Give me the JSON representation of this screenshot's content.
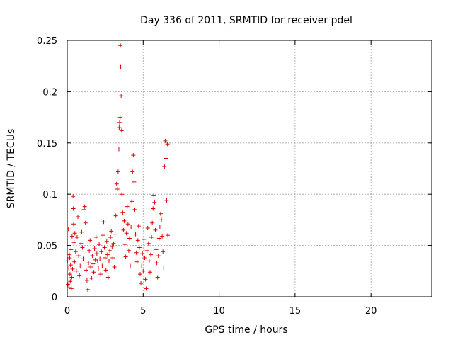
{
  "chart_data": {
    "type": "scatter",
    "title": "Day 336 of 2011, SRMTID for receiver pdel",
    "xlabel": "GPS time / hours",
    "ylabel": "SRMTID / TECUs",
    "xlim": [
      0,
      24
    ],
    "ylim": [
      0,
      0.25
    ],
    "xticks": [
      0,
      5,
      10,
      15,
      20
    ],
    "xtick_labels": [
      "0",
      "5",
      "10",
      "15",
      "20"
    ],
    "yticks": [
      0,
      0.05,
      0.1,
      0.15,
      0.2,
      0.25
    ],
    "ytick_labels": [
      "0",
      "0.05",
      "0.1",
      "0.15",
      "0.2",
      "0.25"
    ],
    "grid": true,
    "marker": "+",
    "colors": {
      "series": "#dd0000",
      "grid": "#a0a0a0",
      "axis": "#000000"
    },
    "series": [
      {
        "name": "pdel",
        "points": [
          [
            0.02,
            0.035
          ],
          [
            0.05,
            0.012
          ],
          [
            0.08,
            0.066
          ],
          [
            0.1,
            0.028
          ],
          [
            0.12,
            0.009
          ],
          [
            0.14,
            0.041
          ],
          [
            0.16,
            0.038
          ],
          [
            0.18,
            0.022
          ],
          [
            0.2,
            0.015
          ],
          [
            0.22,
            0.031
          ],
          [
            0.25,
            0.046
          ],
          [
            0.27,
            0.008
          ],
          [
            0.3,
            0.019
          ],
          [
            0.32,
            0.059
          ],
          [
            0.35,
            0.027
          ],
          [
            0.38,
            0.098
          ],
          [
            0.4,
            0.086
          ],
          [
            0.42,
            0.071
          ],
          [
            0.45,
            0.053
          ],
          [
            0.48,
            0.034
          ],
          [
            0.5,
            0.062
          ],
          [
            0.55,
            0.044
          ],
          [
            0.6,
            0.025
          ],
          [
            0.65,
            0.058
          ],
          [
            0.7,
            0.078
          ],
          [
            0.75,
            0.04
          ],
          [
            0.8,
            0.021
          ],
          [
            0.85,
            0.03
          ],
          [
            0.9,
            0.052
          ],
          [
            0.95,
            0.063
          ],
          [
            1.0,
            0.048
          ],
          [
            1.05,
            0.037
          ],
          [
            1.1,
            0.085
          ],
          [
            1.15,
            0.088
          ],
          [
            1.2,
            0.072
          ],
          [
            1.25,
            0.026
          ],
          [
            1.3,
            0.016
          ],
          [
            1.35,
            0.007
          ],
          [
            1.4,
            0.033
          ],
          [
            1.45,
            0.045
          ],
          [
            1.5,
            0.055
          ],
          [
            1.55,
            0.029
          ],
          [
            1.6,
            0.018
          ],
          [
            1.65,
            0.04
          ],
          [
            1.7,
            0.032
          ],
          [
            1.75,
            0.024
          ],
          [
            1.8,
            0.047
          ],
          [
            1.85,
            0.036
          ],
          [
            1.9,
            0.058
          ],
          [
            1.95,
            0.042
          ],
          [
            2.0,
            0.035
          ],
          [
            2.05,
            0.028
          ],
          [
            2.1,
            0.051
          ],
          [
            2.15,
            0.037
          ],
          [
            2.2,
            0.022
          ],
          [
            2.25,
            0.044
          ],
          [
            2.3,
            0.03
          ],
          [
            2.35,
            0.06
          ],
          [
            2.4,
            0.073
          ],
          [
            2.45,
            0.048
          ],
          [
            2.5,
            0.038
          ],
          [
            2.55,
            0.026
          ],
          [
            2.6,
            0.054
          ],
          [
            2.65,
            0.041
          ],
          [
            2.7,
            0.019
          ],
          [
            2.75,
            0.035
          ],
          [
            2.8,
            0.045
          ],
          [
            2.85,
            0.058
          ],
          [
            2.9,
            0.064
          ],
          [
            2.95,
            0.049
          ],
          [
            3.0,
            0.038
          ],
          [
            3.05,
            0.052
          ],
          [
            3.1,
            0.029
          ],
          [
            3.15,
            0.061
          ],
          [
            3.2,
            0.079
          ],
          [
            3.25,
            0.11
          ],
          [
            3.3,
            0.105
          ],
          [
            3.35,
            0.122
          ],
          [
            3.4,
            0.144
          ],
          [
            3.42,
            0.165
          ],
          [
            3.45,
            0.17
          ],
          [
            3.48,
            0.175
          ],
          [
            3.5,
            0.245
          ],
          [
            3.52,
            0.224
          ],
          [
            3.55,
            0.196
          ],
          [
            3.58,
            0.162
          ],
          [
            3.6,
            0.1
          ],
          [
            3.65,
            0.082
          ],
          [
            3.7,
            0.065
          ],
          [
            3.75,
            0.074
          ],
          [
            3.8,
            0.051
          ],
          [
            3.85,
            0.039
          ],
          [
            3.9,
            0.062
          ],
          [
            3.95,
            0.088
          ],
          [
            4.0,
            0.071
          ],
          [
            4.05,
            0.045
          ],
          [
            4.1,
            0.057
          ],
          [
            4.15,
            0.03
          ],
          [
            4.2,
            0.068
          ],
          [
            4.25,
            0.093
          ],
          [
            4.3,
            0.122
          ],
          [
            4.35,
            0.138
          ],
          [
            4.4,
            0.112
          ],
          [
            4.45,
            0.085
          ],
          [
            4.5,
            0.061
          ],
          [
            4.55,
            0.043
          ],
          [
            4.6,
            0.034
          ],
          [
            4.65,
            0.055
          ],
          [
            4.7,
            0.069
          ],
          [
            4.75,
            0.048
          ],
          [
            4.8,
            0.022
          ],
          [
            4.85,
            0.013
          ],
          [
            4.9,
            0.03
          ],
          [
            4.95,
            0.042
          ],
          [
            5.0,
            0.025
          ],
          [
            5.05,
            0.056
          ],
          [
            5.1,
            0.038
          ],
          [
            5.15,
            0.017
          ],
          [
            5.2,
            0.008
          ],
          [
            5.25,
            0.045
          ],
          [
            5.3,
            0.067
          ],
          [
            5.35,
            0.052
          ],
          [
            5.4,
            0.035
          ],
          [
            5.45,
            0.024
          ],
          [
            5.5,
            0.041
          ],
          [
            5.55,
            0.058
          ],
          [
            5.6,
            0.072
          ],
          [
            5.65,
            0.086
          ],
          [
            5.7,
            0.099
          ],
          [
            5.75,
            0.092
          ],
          [
            5.8,
            0.065
          ],
          [
            5.85,
            0.046
          ],
          [
            5.9,
            0.033
          ],
          [
            5.95,
            0.019
          ],
          [
            6.0,
            0.04
          ],
          [
            6.05,
            0.057
          ],
          [
            6.1,
            0.068
          ],
          [
            6.15,
            0.081
          ],
          [
            6.2,
            0.075
          ],
          [
            6.25,
            0.059
          ],
          [
            6.3,
            0.044
          ],
          [
            6.35,
            0.028
          ],
          [
            6.4,
            0.127
          ],
          [
            6.45,
            0.152
          ],
          [
            6.5,
            0.135
          ],
          [
            6.55,
            0.094
          ],
          [
            6.6,
            0.149
          ],
          [
            6.62,
            0.06
          ]
        ]
      }
    ]
  }
}
